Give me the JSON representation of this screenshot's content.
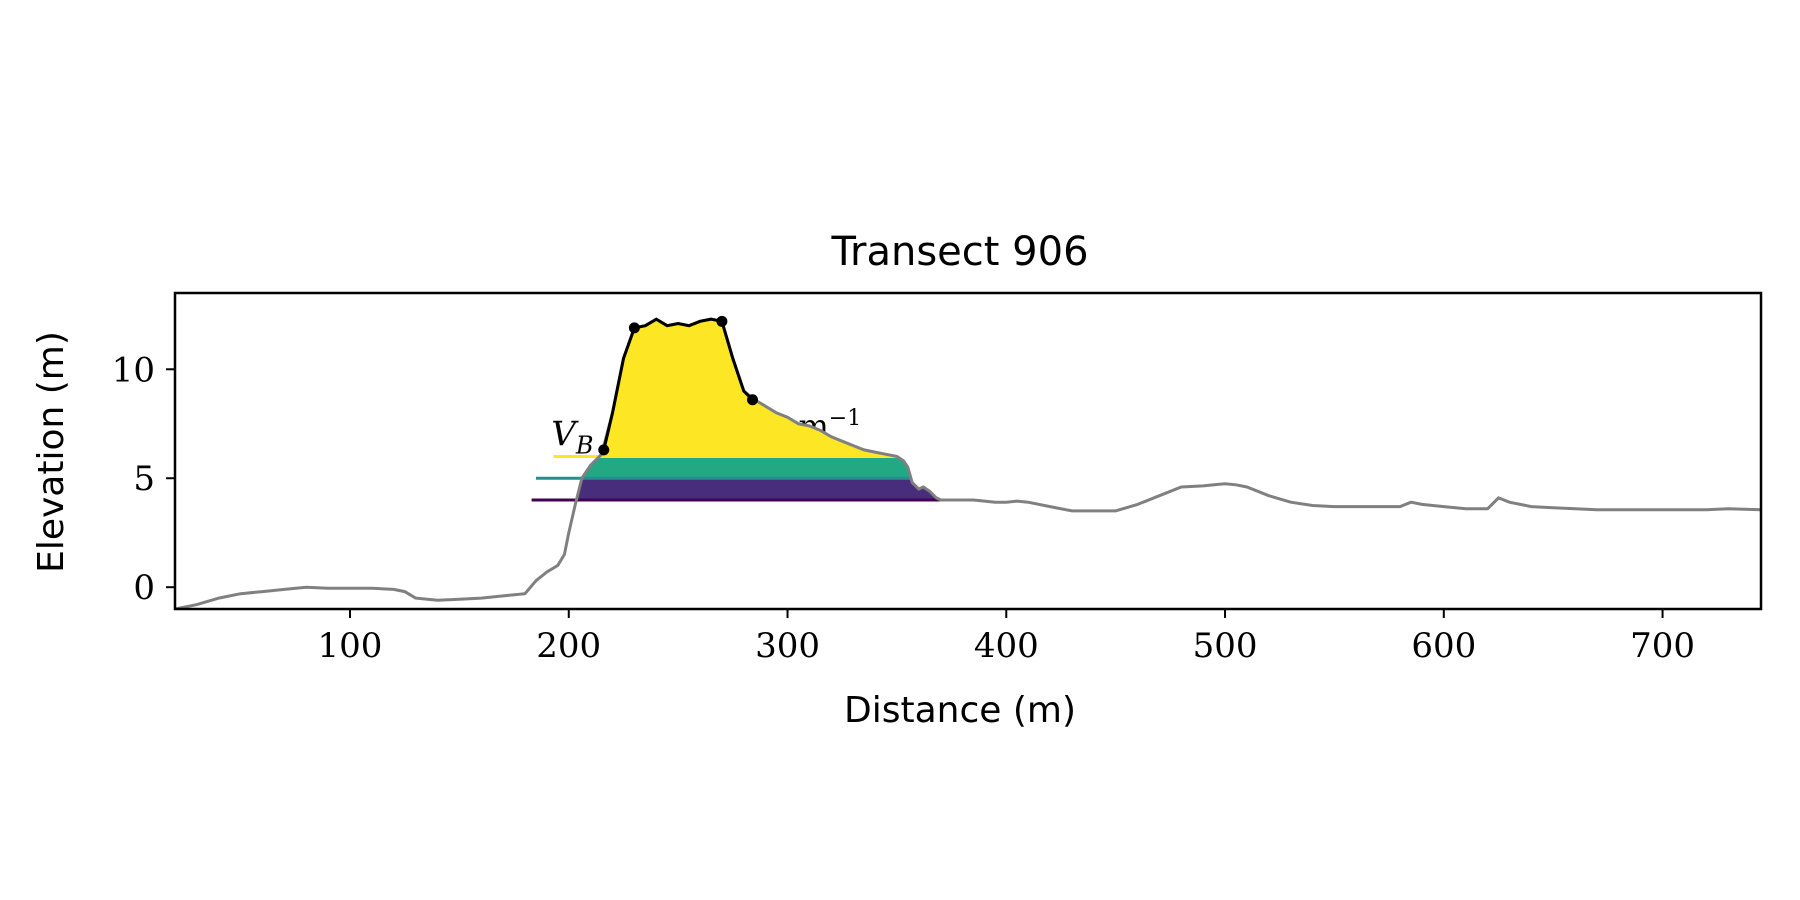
{
  "chart_data": {
    "type": "line",
    "title": "Transect 906",
    "xlabel": "Distance (m)",
    "ylabel": "Elevation (m)",
    "xlim": [
      20,
      745
    ],
    "ylim": [
      -1,
      13.5
    ],
    "xticks": [
      100,
      200,
      300,
      400,
      500,
      600,
      700
    ],
    "yticks": [
      0,
      5,
      10
    ],
    "grid": false,
    "annotation": {
      "label_visible_part": "V",
      "label_subscript": "B",
      "label_tail": "m",
      "label_tail_superscript": "−1",
      "note": "label partially occluded by filled dune area"
    },
    "profile": {
      "color": "#808080",
      "x": [
        20,
        30,
        40,
        50,
        60,
        70,
        80,
        90,
        100,
        110,
        120,
        125,
        130,
        140,
        150,
        160,
        170,
        180,
        185,
        190,
        195,
        198,
        200,
        203,
        206,
        210,
        215,
        220,
        225,
        230,
        235,
        240,
        245,
        250,
        255,
        260,
        265,
        270,
        275,
        280,
        285,
        290,
        295,
        300,
        305,
        310,
        315,
        320,
        325,
        330,
        335,
        340,
        345,
        350,
        353,
        355,
        357,
        360,
        362,
        365,
        368,
        370,
        375,
        380,
        385,
        390,
        395,
        400,
        405,
        410,
        420,
        430,
        440,
        450,
        460,
        470,
        480,
        490,
        495,
        500,
        505,
        510,
        520,
        530,
        540,
        550,
        560,
        570,
        580,
        585,
        590,
        600,
        610,
        620,
        625,
        630,
        640,
        650,
        660,
        670,
        680,
        690,
        700,
        710,
        720,
        730,
        745
      ],
      "y": [
        -1.0,
        -0.8,
        -0.5,
        -0.3,
        -0.2,
        -0.1,
        0.0,
        -0.05,
        -0.05,
        -0.05,
        -0.1,
        -0.2,
        -0.5,
        -0.6,
        -0.55,
        -0.5,
        -0.4,
        -0.3,
        0.3,
        0.7,
        1.0,
        1.5,
        2.5,
        3.8,
        5.0,
        5.6,
        6.1,
        8.0,
        10.5,
        11.9,
        12.0,
        12.3,
        12.0,
        12.1,
        12.0,
        12.2,
        12.3,
        12.2,
        10.5,
        9.0,
        8.6,
        8.3,
        8.0,
        7.8,
        7.5,
        7.4,
        7.2,
        6.9,
        6.7,
        6.5,
        6.3,
        6.2,
        6.1,
        6.0,
        5.8,
        5.5,
        4.8,
        4.5,
        4.6,
        4.4,
        4.1,
        4.0,
        4.0,
        4.0,
        4.0,
        3.95,
        3.9,
        3.9,
        3.95,
        3.9,
        3.7,
        3.5,
        3.5,
        3.5,
        3.8,
        4.2,
        4.6,
        4.65,
        4.7,
        4.75,
        4.7,
        4.6,
        4.2,
        3.9,
        3.75,
        3.7,
        3.7,
        3.7,
        3.7,
        3.9,
        3.8,
        3.7,
        3.6,
        3.6,
        4.1,
        3.9,
        3.7,
        3.65,
        3.6,
        3.55,
        3.55,
        3.55,
        3.55,
        3.55,
        3.55,
        3.6,
        3.55
      ]
    },
    "dune": {
      "color": "#000000",
      "x": [
        216,
        220,
        225,
        230,
        235,
        240,
        245,
        250,
        255,
        260,
        265,
        270,
        275,
        280,
        284
      ],
      "y": [
        6.3,
        8.0,
        10.5,
        11.9,
        12.0,
        12.3,
        12.0,
        12.1,
        12.0,
        12.2,
        12.3,
        12.2,
        10.5,
        9.0,
        8.6
      ],
      "markers": [
        {
          "x": 216,
          "y": 6.3
        },
        {
          "x": 230,
          "y": 11.9
        },
        {
          "x": 270,
          "y": 12.2
        },
        {
          "x": 284,
          "y": 8.6
        }
      ]
    },
    "levels": [
      {
        "name": "level-1",
        "y": 6.0,
        "x_start": 193,
        "color": "#fde725"
      },
      {
        "name": "level-2",
        "y": 5.0,
        "x_start": 185,
        "color": "#21918c"
      },
      {
        "name": "level-3",
        "y": 4.0,
        "x_start": 183,
        "color": "#440154"
      }
    ],
    "fills": [
      {
        "name": "fill-top",
        "color": "#fde725",
        "y_low": 6.0
      },
      {
        "name": "fill-mid",
        "color": "#22a884",
        "y_low": 5.0,
        "y_high": 6.0
      },
      {
        "name": "fill-low",
        "color": "#472d7b",
        "y_low": 4.0,
        "y_high": 5.0
      }
    ]
  }
}
